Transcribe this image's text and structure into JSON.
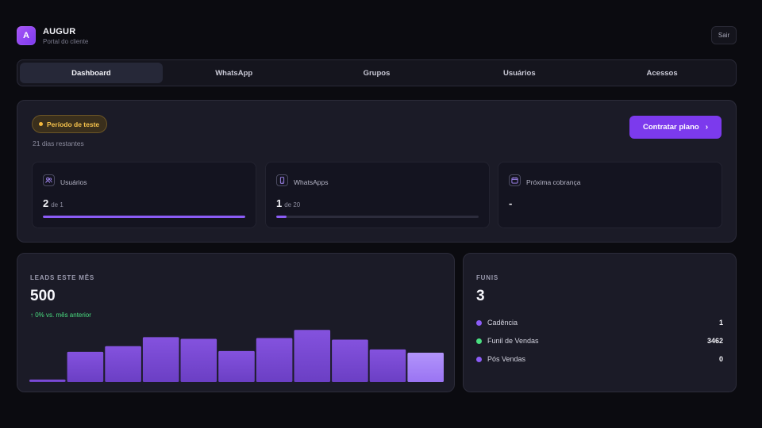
{
  "brand": {
    "initial": "A",
    "name": "AUGUR",
    "subtitle": "Portal do cliente"
  },
  "header": {
    "logout_label": "Sair"
  },
  "tabs": [
    {
      "label": "Dashboard",
      "active": true
    },
    {
      "label": "WhatsApp",
      "active": false
    },
    {
      "label": "Grupos",
      "active": false
    },
    {
      "label": "Usuários",
      "active": false
    },
    {
      "label": "Acessos",
      "active": false
    }
  ],
  "plan": {
    "badge": "Período de teste",
    "remaining": "21 dias restantes",
    "cta_label": "Contratar plano",
    "cta_icon": "chevron-right-icon",
    "accent": "#7c3aed",
    "badge_color": "#f5c24c"
  },
  "stats": [
    {
      "icon": "users-icon",
      "label": "Usuários",
      "value": "2",
      "of": "de 1",
      "progress": 1.0
    },
    {
      "icon": "phone-icon",
      "label": "WhatsApps",
      "value": "1",
      "of": "de 20",
      "progress": 0.05
    },
    {
      "icon": "calendar-icon",
      "label": "Próxima cobrança",
      "value": "-"
    }
  ],
  "leads": {
    "label": "LEADS ESTE MÊS",
    "value": "500",
    "trend": "↑ 0% vs. mês anterior",
    "trend_color": "#4ade80"
  },
  "chart_data": {
    "type": "bar",
    "values": [
      3,
      37,
      44,
      55,
      53,
      38,
      54,
      64,
      52,
      40,
      36
    ],
    "highlight_last": true,
    "ylim": [
      0,
      70
    ],
    "bar_color": "#7c4dd6",
    "highlight_color": "#a78bfa"
  },
  "funnels": {
    "label": "FUNIS",
    "value": "3",
    "items": [
      {
        "name": "Cadência",
        "value": "1",
        "color": "#8b5cf6"
      },
      {
        "name": "Funil de Vendas",
        "value": "3462",
        "color": "#4ade80"
      },
      {
        "name": "Pós Vendas",
        "value": "0",
        "color": "#8b5cf6"
      }
    ]
  }
}
